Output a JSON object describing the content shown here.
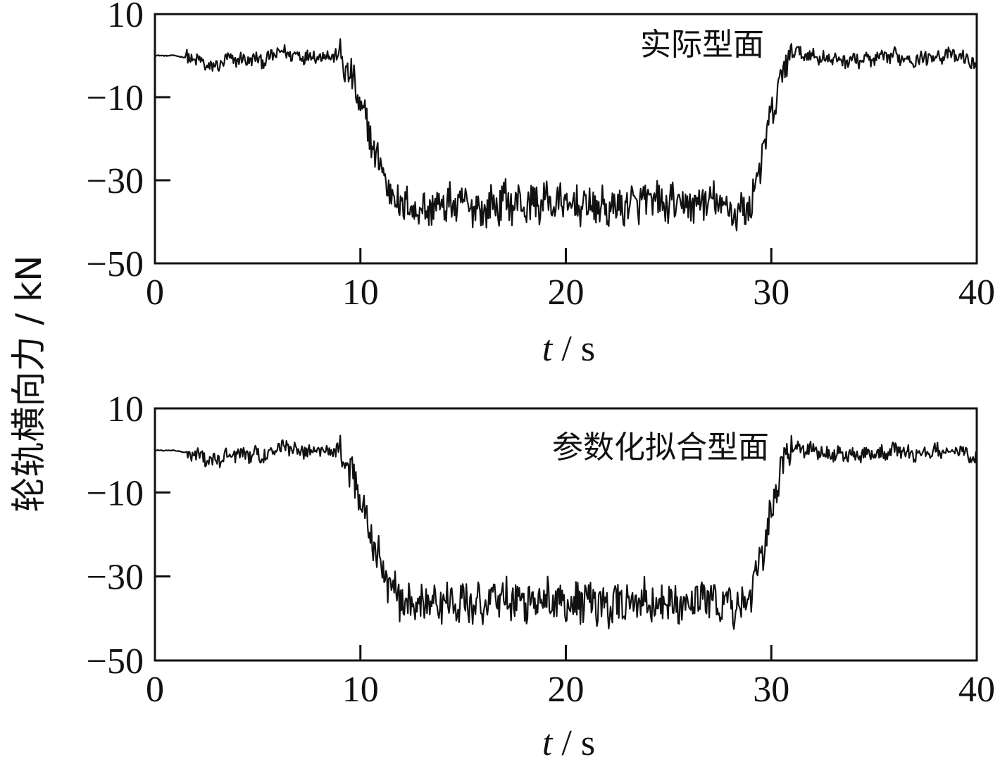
{
  "ylabel": "轮轨横向力 / kN",
  "chart_data": [
    {
      "type": "line",
      "panel_label": "实际型面",
      "xlabel_var": "t",
      "xlabel_unit": " / s",
      "xlim": [
        0,
        40
      ],
      "ylim": [
        -50,
        10
      ],
      "x_ticks": [
        "0",
        "10",
        "20",
        "30",
        "40"
      ],
      "y_ticks": [
        "10",
        "−10",
        "−30",
        "−50"
      ],
      "x_tick_values": [
        0,
        10,
        20,
        30,
        40
      ],
      "y_tick_values": [
        10,
        -10,
        -30,
        -50
      ],
      "series": [
        {
          "x": [
            0,
            1,
            2,
            2.8,
            3.5,
            4.5,
            5.5,
            6,
            7,
            8,
            9,
            9.5,
            10,
            10.5,
            11,
            11.5,
            12,
            13,
            14,
            15,
            16,
            17,
            18,
            19,
            20,
            21,
            22,
            23,
            24,
            25,
            26,
            27,
            28,
            28.5,
            29,
            29.5,
            30,
            30.5,
            31,
            32,
            33,
            34,
            35,
            36,
            37,
            38,
            39,
            40
          ],
          "y": [
            0,
            0,
            -1,
            -3,
            -1,
            -1,
            -1,
            1,
            0,
            0,
            0,
            -5,
            -12,
            -20,
            -27,
            -33,
            -36,
            -37,
            -36,
            -36,
            -37,
            -35,
            -36,
            -35,
            -36,
            -36,
            -37,
            -36,
            -35,
            -36,
            -36,
            -35,
            -37,
            -38,
            -36,
            -25,
            -15,
            -5,
            1,
            0,
            -1,
            -1,
            -1,
            0,
            -1,
            0,
            0,
            -2
          ]
        }
      ]
    },
    {
      "type": "line",
      "panel_label": "参数化拟合型面",
      "xlabel_var": "t",
      "xlabel_unit": " / s",
      "xlim": [
        0,
        40
      ],
      "ylim": [
        -50,
        10
      ],
      "x_ticks": [
        "0",
        "10",
        "20",
        "30",
        "40"
      ],
      "y_ticks": [
        "10",
        "−10",
        "−30",
        "−50"
      ],
      "x_tick_values": [
        0,
        10,
        20,
        30,
        40
      ],
      "y_tick_values": [
        10,
        -10,
        -30,
        -50
      ],
      "series": [
        {
          "x": [
            0,
            1,
            2,
            2.8,
            3.5,
            4.5,
            5.5,
            6,
            7,
            8,
            9,
            9.5,
            10,
            10.5,
            11,
            11.5,
            12,
            13,
            14,
            15,
            16,
            17,
            18,
            19,
            20,
            21,
            22,
            23,
            24,
            25,
            26,
            27,
            28,
            28.5,
            29,
            29.5,
            30,
            30.5,
            31,
            32,
            33,
            34,
            35,
            36,
            37,
            38,
            39,
            40
          ],
          "y": [
            0,
            0,
            -1,
            -3,
            -1,
            -1,
            -1,
            1,
            0,
            0,
            0,
            -5,
            -12,
            -20,
            -27,
            -33,
            -36,
            -37,
            -36,
            -36,
            -37,
            -35,
            -36,
            -35,
            -36,
            -36,
            -37,
            -36,
            -35,
            -36,
            -36,
            -35,
            -37,
            -38,
            -36,
            -25,
            -15,
            -5,
            1,
            0,
            -1,
            -1,
            -1,
            0,
            -1,
            0,
            0,
            -2
          ]
        }
      ]
    }
  ]
}
